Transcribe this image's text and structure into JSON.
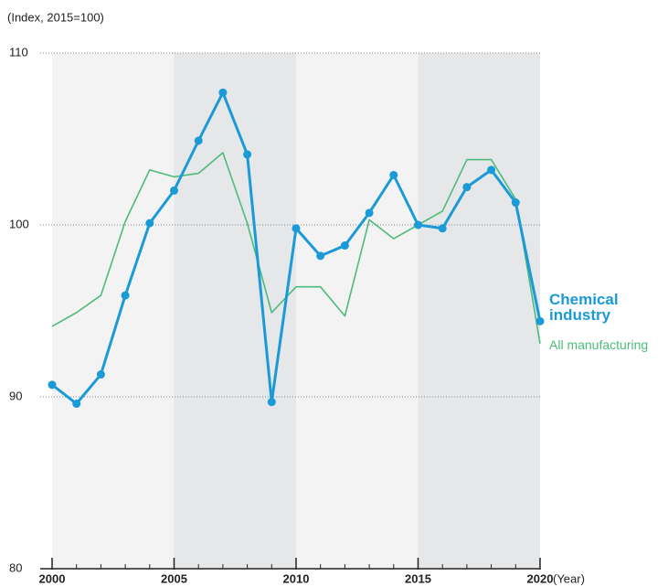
{
  "chart_data": {
    "type": "line",
    "y_axis_label": "(Index, 2015=100)",
    "x_axis_label": "(Year)",
    "x": [
      2000,
      2001,
      2002,
      2003,
      2004,
      2005,
      2006,
      2007,
      2008,
      2009,
      2010,
      2011,
      2012,
      2013,
      2014,
      2015,
      2016,
      2017,
      2018,
      2019,
      2020
    ],
    "series": [
      {
        "name": "All manufacturing",
        "color": "#4dbb7a",
        "markers": false,
        "values": [
          94.1,
          94.9,
          95.9,
          100.2,
          103.2,
          102.8,
          103.0,
          104.2,
          100.1,
          94.9,
          96.4,
          96.4,
          94.7,
          100.3,
          99.2,
          100,
          100.8,
          103.8,
          103.8,
          101.5,
          93.1
        ]
      },
      {
        "name": "Chemical industry",
        "color": "#1a9ad6",
        "markers": true,
        "values": [
          90.7,
          89.6,
          91.3,
          95.9,
          100.1,
          102.0,
          104.9,
          107.7,
          104.1,
          89.7,
          99.8,
          98.2,
          98.8,
          100.7,
          102.9,
          100,
          99.8,
          102.2,
          103.2,
          101.3,
          94.4
        ]
      }
    ],
    "xlim": [
      2000,
      2020
    ],
    "xticks": [
      2000,
      2005,
      2010,
      2015,
      2020
    ],
    "ylim": [
      80,
      110
    ],
    "yticks": [
      80,
      90,
      100,
      110
    ],
    "grid": true
  }
}
